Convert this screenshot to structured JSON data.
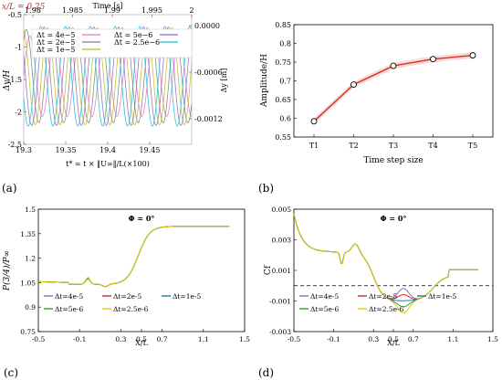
{
  "chart_data": [
    {
      "panel": "(a)",
      "type": "line",
      "annotation": "x/L = 0.25",
      "xlabel": "t* = t × ‖U∞‖/L(×100)",
      "ylabel": "Δy/H",
      "top_xlabel": "Time [s]",
      "right_ylabel": "Δy [m]",
      "xlim": [
        19.3,
        19.5
      ],
      "ylim": [
        -2.5,
        -0.5
      ],
      "xticks": [
        "19.3",
        "19.35",
        "19.4",
        "19.45"
      ],
      "yticks": [
        "-2.5",
        "-2",
        "-1.5",
        "-1",
        "-0.5"
      ],
      "top_ticks": [
        "1.98",
        "1.985",
        "1.99",
        "1.995",
        "2"
      ],
      "right_ticks": [
        "0.0000",
        "-0.0006",
        "-0.0012"
      ],
      "series": [
        {
          "name": "Δt = 4e−5",
          "color": "#e377c2",
          "phase": 0.0,
          "amp": 0.62
        },
        {
          "name": "Δt = 2e−5",
          "color": "#7f7f7f",
          "phase": 0.9,
          "amp": 0.72
        },
        {
          "name": "Δt = 1e−5",
          "color": "#bcbd22",
          "phase": 1.8,
          "amp": 0.75
        },
        {
          "name": "Δt = 5e−6",
          "color": "#9467bd",
          "phase": 2.7,
          "amp": 0.76
        },
        {
          "name": "Δt = 2.5e−6",
          "color": "#17becf",
          "phase": 3.6,
          "amp": 0.77
        }
      ]
    },
    {
      "panel": "(b)",
      "type": "line",
      "xlabel": "Time step size",
      "ylabel": "Amplitude/H",
      "categories": [
        "T1",
        "T2",
        "T3",
        "T4",
        "T5"
      ],
      "values": [
        0.592,
        0.69,
        0.74,
        0.758,
        0.768
      ],
      "ylim": [
        0.55,
        0.85
      ],
      "yticks": [
        "0.55",
        "0.6",
        "0.65",
        "0.7",
        "0.75",
        "0.8",
        "0.85"
      ]
    },
    {
      "panel": "(c)",
      "type": "line",
      "title": "Φ = 0°",
      "xlabel": "X/L",
      "ylabel": "P(3/4)/P∞",
      "xlim": [
        -0.5,
        1.5
      ],
      "ylim": [
        0.75,
        1.5
      ],
      "xticks": [
        "-0.5",
        "-0.1",
        "0.3",
        "0.5",
        "0.7",
        "1.1",
        "1.5"
      ],
      "yticks": [
        "0.75",
        "0.9",
        "1.05",
        "1.2",
        "1.35",
        "1.5"
      ],
      "series": [
        {
          "name": "Δt=4e-5",
          "color": "#9467bd"
        },
        {
          "name": "Δt=2e-5",
          "color": "#d62728"
        },
        {
          "name": "Δt=1e-5",
          "color": "#1f77b4"
        },
        {
          "name": "Δt=5e-6",
          "color": "#2ca02c"
        },
        {
          "name": "Δt=2.5e-6",
          "color": "#e6c700"
        }
      ]
    },
    {
      "panel": "(d)",
      "type": "line",
      "title": "Φ = 0°",
      "xlabel": "X/L",
      "ylabel": "Cf",
      "xlim": [
        -0.5,
        1.5
      ],
      "ylim": [
        -0.003,
        0.005
      ],
      "xticks": [
        "-0.5",
        "-0.1",
        "0.3",
        "0.5",
        "0.7",
        "1.1",
        "1.5"
      ],
      "yticks": [
        "-0.003",
        "-0.001",
        "0.001",
        "0.003",
        "0.005"
      ],
      "series": [
        {
          "name": "Δt=4e-5",
          "color": "#9467bd"
        },
        {
          "name": "Δt=2e-5",
          "color": "#d62728"
        },
        {
          "name": "Δt=1e-5",
          "color": "#1f77b4"
        },
        {
          "name": "Δt=5e-6",
          "color": "#2ca02c"
        },
        {
          "name": "Δt=2.5e-6",
          "color": "#e6c700"
        }
      ]
    }
  ],
  "panel_labels": [
    "(a)",
    "(b)",
    "(c)",
    "(d)"
  ]
}
